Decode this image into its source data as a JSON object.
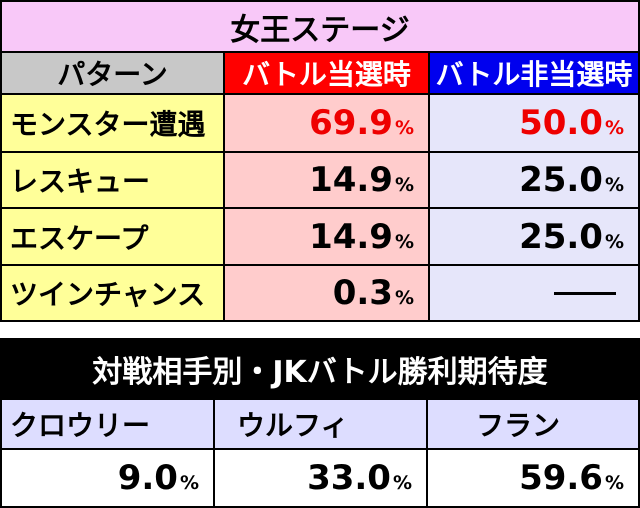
{
  "table1": {
    "title": "女王ステージ",
    "header": {
      "pattern": "パターン",
      "battle_on": "バトル当選時",
      "battle_off": "バトル非当選時"
    },
    "rows": [
      {
        "pattern": "モンスター遭遇",
        "on": "69.9",
        "off": "50.0",
        "unit": "%",
        "highlight": true
      },
      {
        "pattern": "レスキュー",
        "on": "14.9",
        "off": "25.0",
        "unit": "%",
        "highlight": false
      },
      {
        "pattern": "エスケープ",
        "on": "14.9",
        "off": "25.0",
        "unit": "%",
        "highlight": false
      },
      {
        "pattern": "ツインチャンス",
        "on": "0.3",
        "off": "",
        "unit": "%",
        "highlight": false
      }
    ]
  },
  "table2": {
    "title": "対戦相手別・JKバトル勝利期待度",
    "columns": [
      {
        "name": "クロウリー",
        "value": "9.0",
        "unit": "%"
      },
      {
        "name": "ウルフィ",
        "value": "33.0",
        "unit": "%"
      },
      {
        "name": "フラン",
        "value": "59.6",
        "unit": "%"
      }
    ]
  },
  "colors": {
    "title_bg": "#f8c8f8",
    "header_gray": "#c8c8c8",
    "red": "#ff0000",
    "blue": "#0000ee",
    "pattern_bg": "#ffff99",
    "on_bg": "#ffcccc",
    "off_bg": "#e6e6fa",
    "highlight_text": "#ee0000",
    "dark_title": "#000000",
    "lavender": "#ddddff"
  }
}
